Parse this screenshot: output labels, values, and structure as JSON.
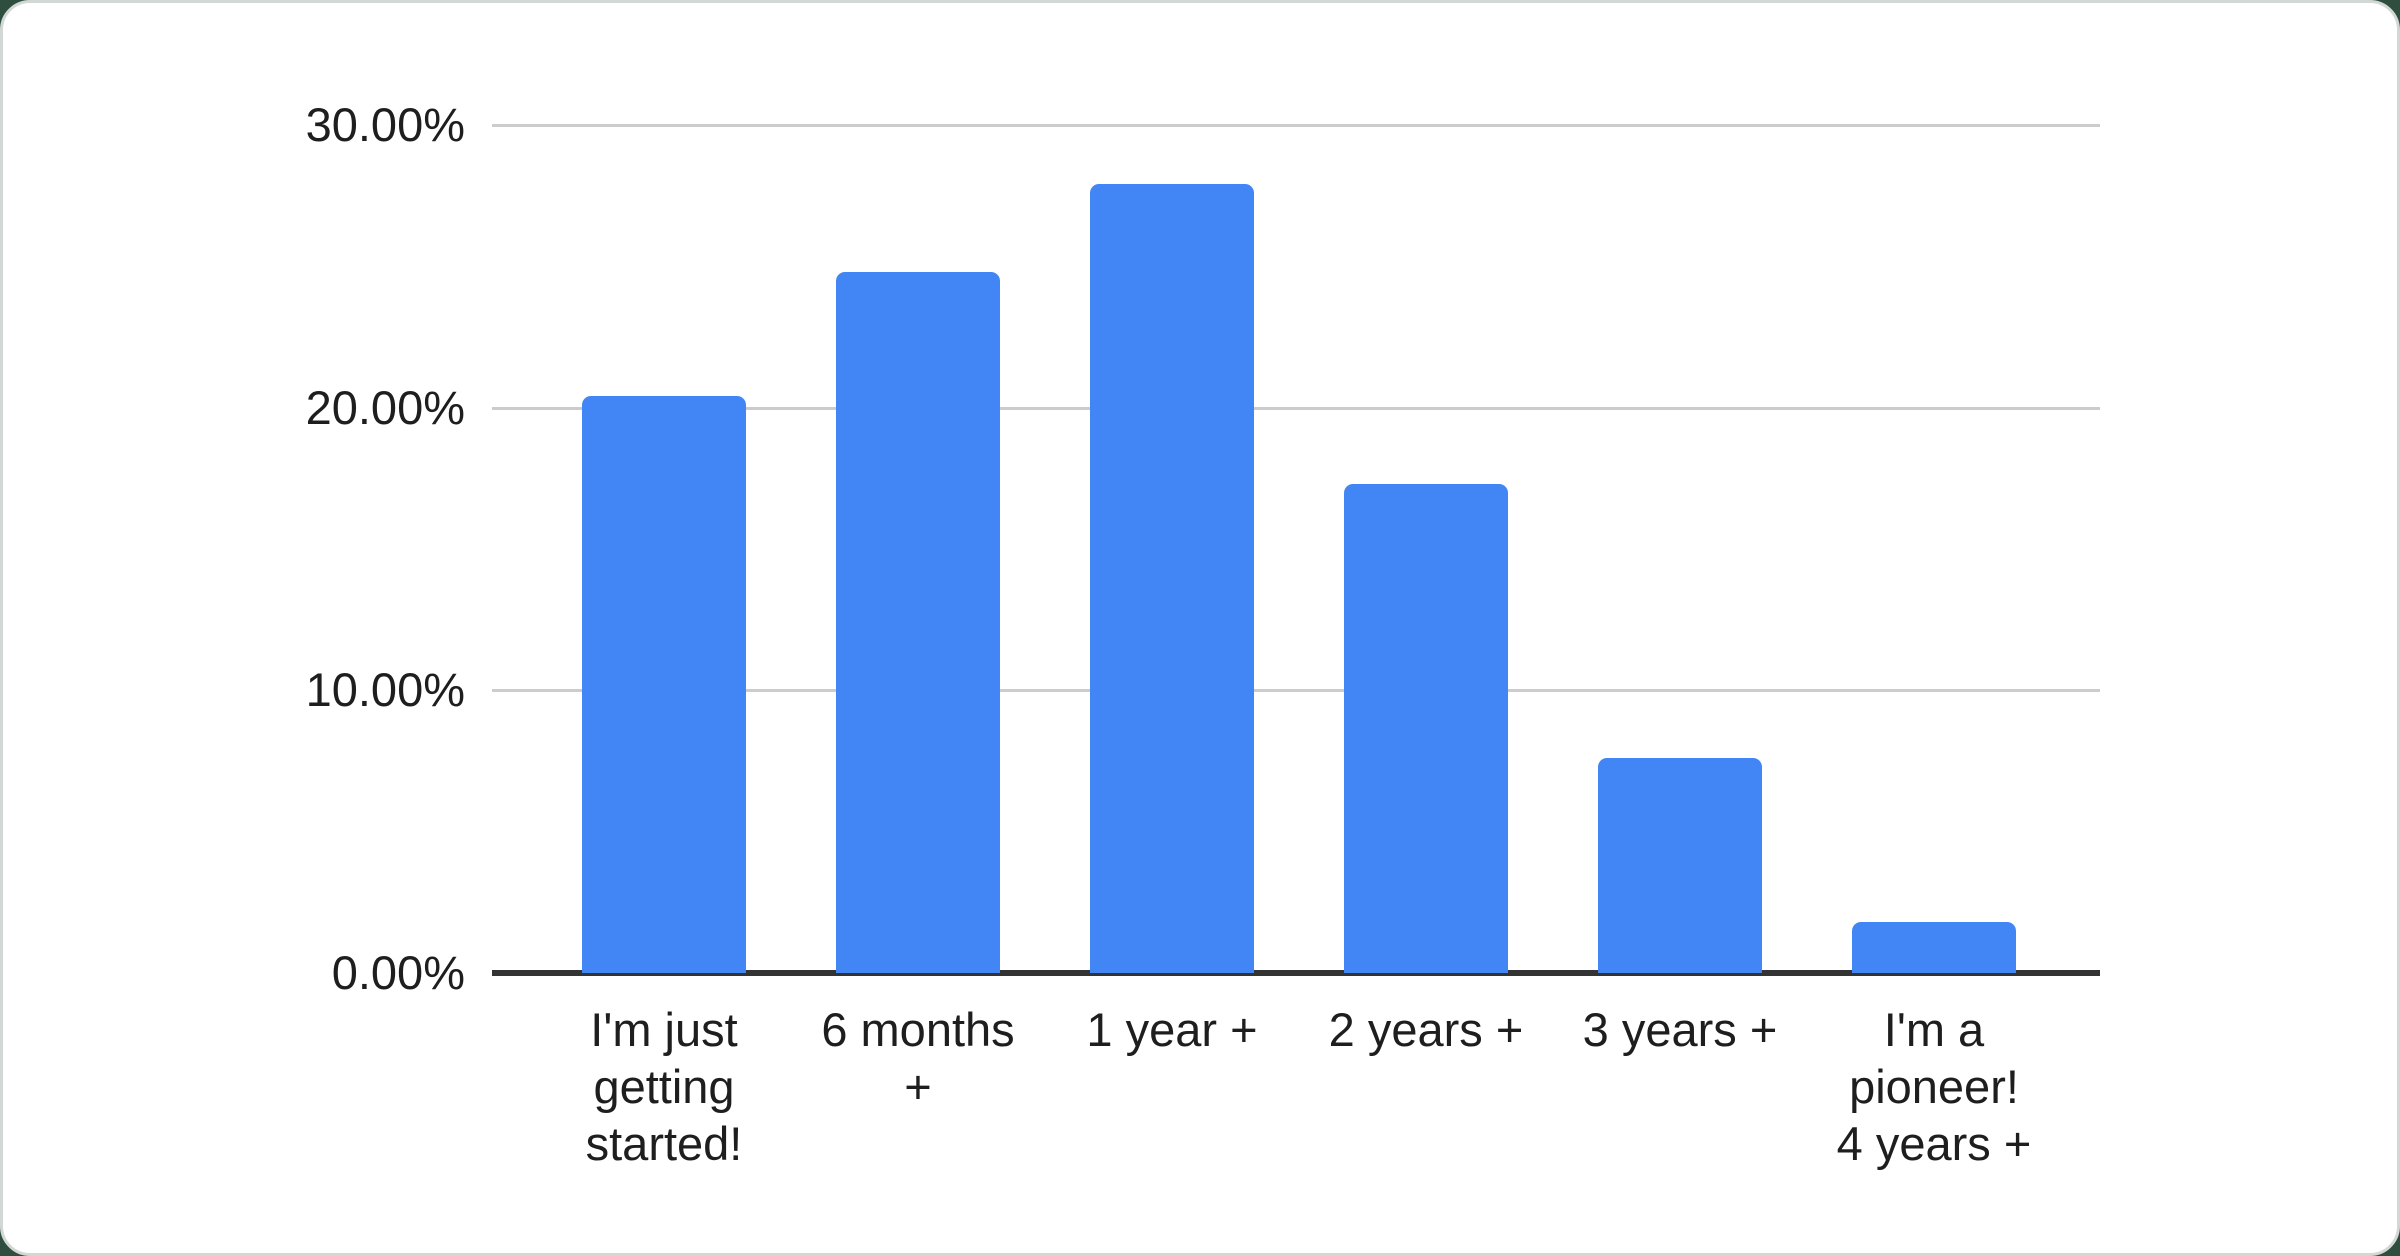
{
  "chart_data": {
    "type": "bar",
    "title": "",
    "xlabel": "",
    "ylabel": "",
    "categories": [
      "I'm just\ngetting\nstarted!",
      "6 months\n+",
      "1 year +",
      "2 years +",
      "3 years +",
      "I'm a\npioneer!\n4 years +"
    ],
    "values": [
      20.4,
      24.8,
      27.9,
      17.3,
      7.6,
      1.8
    ],
    "ylim": [
      0,
      30
    ],
    "y_ticks": [
      {
        "value": 30,
        "label": "30.00%"
      },
      {
        "value": 20,
        "label": "20.00%"
      },
      {
        "value": 10,
        "label": "10.00%"
      },
      {
        "value": 0,
        "label": "0.00%"
      }
    ],
    "grid": true,
    "legend_position": "none",
    "colors": {
      "bar": "#4285f4",
      "gridline": "#cccccc",
      "axis_line": "#333333",
      "label": "#1e1e1e",
      "card_background": "#ffffff",
      "card_border": "#d3d8d6",
      "page_background": "#2f4e3e"
    }
  }
}
